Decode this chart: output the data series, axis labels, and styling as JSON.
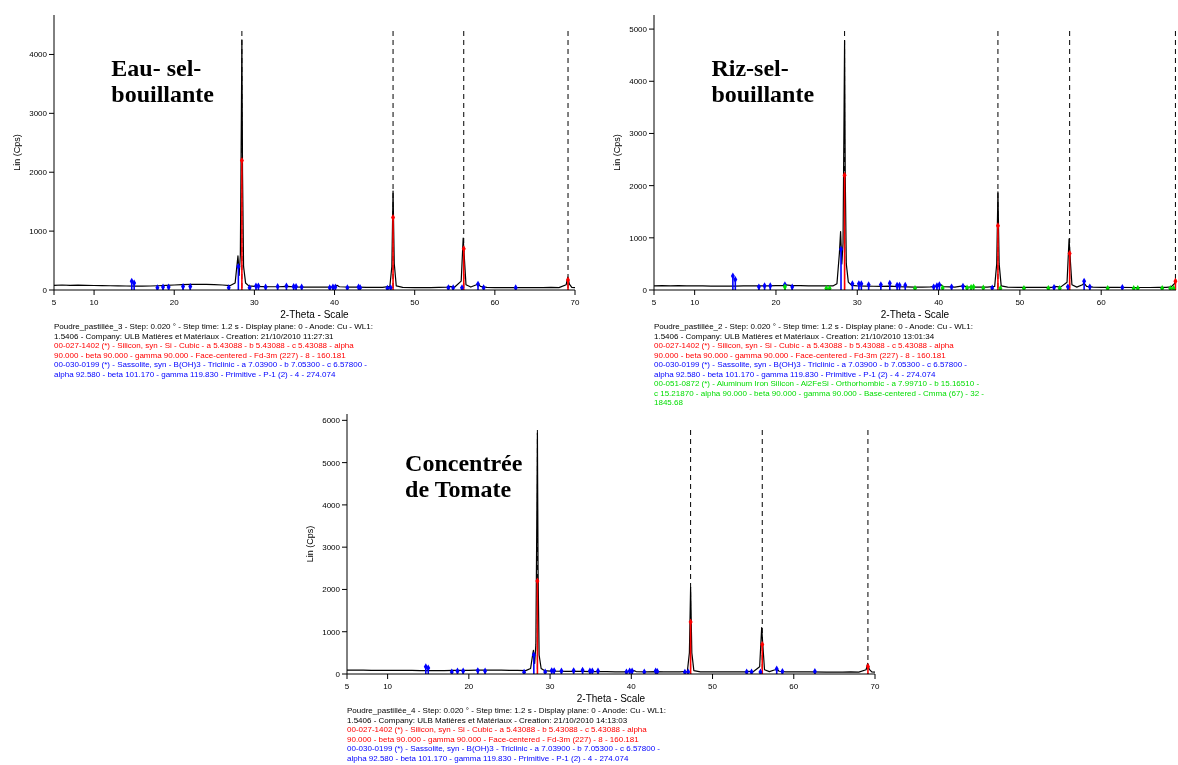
{
  "chart_data": [
    {
      "type": "line",
      "xlabel": "2-Theta - Scale",
      "ylabel": "Lin (Cps)",
      "xlim": [
        5,
        70
      ],
      "ylim": [
        0,
        4670
      ],
      "xticks": [
        5,
        10,
        20,
        30,
        40,
        50,
        60,
        70
      ],
      "yticks": [
        0,
        1000,
        2000,
        3000,
        4000
      ],
      "legend": "bottom",
      "annotations": [
        "Eau- sel- bouillante"
      ],
      "ref_lines": [
        {
          "axis": "x",
          "value": 28.44,
          "color": "#000000",
          "line_style": "dashed"
        },
        {
          "axis": "x",
          "value": 47.3,
          "color": "#000000",
          "line_style": "dashed"
        },
        {
          "axis": "x",
          "value": 56.12,
          "color": "#000000",
          "line_style": "dashed"
        },
        {
          "axis": "x",
          "value": 69.13,
          "color": "#000000",
          "line_style": "dashed"
        }
      ],
      "series": [
        {
          "name": "Poudre_pastillée_3 - Step: 0.020 ° - Step time: 1.2 s - Display plane: 0 - Anode: Cu - WL1: 1.5406 - Company: ULB Matières et Matériaux - Creation: 21/10/2010 11:27:31",
          "color": "#000000",
          "x": [
            5,
            6,
            7,
            8,
            9,
            10,
            11,
            12,
            13,
            14,
            15,
            16,
            17,
            18,
            19,
            20,
            21,
            22,
            23,
            24,
            25,
            26,
            27,
            27.6,
            27.85,
            27.95,
            28.1,
            28.25,
            28.38,
            28.44,
            28.52,
            28.65,
            28.9,
            29.3,
            30,
            31,
            32,
            33,
            34,
            35,
            36,
            37,
            38,
            39,
            40,
            40.3,
            40.6,
            42,
            43,
            44,
            45,
            46,
            46.9,
            47.15,
            47.3,
            47.45,
            47.7,
            48.5,
            50,
            52,
            54,
            54.3,
            55,
            55.8,
            56.05,
            56.15,
            56.4,
            57,
            57.7,
            57.9,
            58.2,
            59,
            60,
            62,
            64,
            66,
            67,
            68,
            68.9,
            69.1,
            69.3,
            69.6,
            70
          ],
          "values": [
            80,
            85,
            80,
            82,
            78,
            76,
            75,
            72,
            70,
            68,
            65,
            66,
            68,
            72,
            78,
            85,
            90,
            95,
            98,
            95,
            90,
            85,
            75,
            120,
            450,
            580,
            250,
            600,
            3000,
            4250,
            2000,
            400,
            120,
            70,
            62,
            58,
            55,
            55,
            60,
            52,
            50,
            48,
            48,
            50,
            55,
            80,
            55,
            48,
            50,
            45,
            45,
            45,
            60,
            400,
            1680,
            450,
            70,
            45,
            42,
            42,
            48,
            60,
            50,
            150,
            880,
            650,
            90,
            50,
            90,
            110,
            60,
            45,
            42,
            42,
            40,
            40,
            45,
            40,
            90,
            220,
            100,
            45,
            40
          ]
        },
        {
          "type": "lollipop",
          "marker": "diamond",
          "name": "00-027-1402 (*) - Silicon, syn - Si - Cubic - a 5.43088 - b 5.43088 - c 5.43088 - alpha 90.000 - beta 90.000 - gamma 90.000 - Face-centered - Fd-3m (227) - 8 - 160.181",
          "color": "#ff0000",
          "x": [
            28.44,
            47.3,
            56.12,
            69.13
          ],
          "values": [
            2200,
            1230,
            700,
            170
          ]
        },
        {
          "type": "lollipop",
          "marker": "diamond",
          "name": "00-030-0199 (*) - Sassolite, syn - B(OH)3 - Triclinic - a 7.03900 - b 7.05300 - c 6.57800 - alpha 92.580 - beta 101.170 - gamma 119.830 - Primitive - P-1 (2) - 4 - 274.074",
          "color": "#0000ff",
          "x": [
            14.7,
            15,
            17.9,
            18.6,
            19.3,
            21.1,
            22,
            26.8,
            28,
            29.4,
            30.2,
            30.5,
            31.4,
            32.9,
            34,
            34.9,
            35.2,
            35.9,
            39.4,
            39.8,
            40.1,
            41.6,
            43,
            43.2,
            46.6,
            47,
            54.2,
            54.8,
            55.9,
            57.9,
            58.6,
            62.6
          ],
          "values": [
            150,
            120,
            40,
            50,
            50,
            60,
            60,
            40,
            400,
            40,
            70,
            70,
            50,
            60,
            70,
            60,
            60,
            50,
            40,
            50,
            50,
            40,
            50,
            40,
            30,
            40,
            40,
            40,
            40,
            100,
            40,
            40
          ]
        }
      ]
    },
    {
      "type": "line",
      "xlabel": "2-Theta - Scale",
      "ylabel": "Lin (Cps)",
      "xlim": [
        5,
        69.2
      ],
      "ylim": [
        0,
        5270
      ],
      "xticks": [
        5,
        10,
        20,
        30,
        40,
        50,
        60
      ],
      "yticks": [
        0,
        1000,
        2000,
        3000,
        4000,
        5000
      ],
      "legend": "bottom",
      "annotations": [
        "Riz-sel- bouillante"
      ],
      "ref_lines": [
        {
          "axis": "x",
          "value": 28.44,
          "color": "#000000",
          "line_style": "dashed"
        },
        {
          "axis": "x",
          "value": 47.3,
          "color": "#000000",
          "line_style": "dashed"
        },
        {
          "axis": "x",
          "value": 56.12,
          "color": "#000000",
          "line_style": "dashed"
        },
        {
          "axis": "x",
          "value": 69.13,
          "color": "#000000",
          "line_style": "dashed"
        }
      ],
      "series": [
        {
          "name": "Poudre_pastillée_2 - Step: 0.020 ° - Step time: 1.2 s - Display plane: 0 - Anode: Cu - WL1: 1.5406 - Company: ULB Matières et Matériaux - Creation: 21/10/2010 13:01:34",
          "color": "#000000",
          "x": [
            5,
            6,
            7,
            8,
            9,
            10,
            11,
            12,
            13,
            14,
            15,
            16,
            17,
            18,
            19,
            20,
            21,
            21.2,
            22,
            23,
            24,
            25,
            26,
            27,
            27.5,
            27.8,
            27.95,
            28.1,
            28.25,
            28.38,
            28.44,
            28.52,
            28.65,
            28.9,
            29.3,
            30,
            31,
            32,
            33,
            34,
            35,
            36,
            37,
            38,
            39,
            40,
            40.3,
            40.6,
            42,
            43,
            43.5,
            44,
            45,
            46,
            46.9,
            47.15,
            47.3,
            47.45,
            47.7,
            48.5,
            50,
            52,
            54,
            54.3,
            55,
            55.8,
            56.05,
            56.15,
            56.4,
            57,
            57.7,
            57.9,
            58.2,
            59,
            60,
            62,
            64,
            66,
            67,
            68,
            68.6,
            69,
            69.2
          ],
          "values": [
            80,
            85,
            80,
            82,
            80,
            78,
            78,
            76,
            75,
            75,
            75,
            78,
            78,
            80,
            80,
            82,
            85,
            100,
            85,
            82,
            80,
            80,
            78,
            78,
            120,
            700,
            1120,
            500,
            900,
            3500,
            4780,
            2200,
            500,
            150,
            90,
            80,
            75,
            72,
            70,
            75,
            65,
            60,
            55,
            55,
            58,
            70,
            100,
            65,
            55,
            80,
            60,
            55,
            55,
            55,
            70,
            500,
            1880,
            500,
            80,
            55,
            50,
            50,
            50,
            70,
            55,
            150,
            980,
            700,
            100,
            55,
            100,
            130,
            70,
            55,
            50,
            50,
            48,
            48,
            50,
            50,
            60,
            120,
            200
          ]
        },
        {
          "type": "lollipop",
          "marker": "diamond",
          "name": "00-027-1402 (*) - Silicon, syn - Si - Cubic - a 5.43088 - b 5.43088 - c 5.43088 - alpha 90.000 - beta 90.000 - gamma 90.000 - Face-centered - Fd-3m (227) - 8 - 160.181",
          "color": "#ff0000",
          "x": [
            28.44,
            47.3,
            56.12,
            69.13
          ],
          "values": [
            2200,
            1230,
            700,
            170
          ]
        },
        {
          "type": "lollipop",
          "marker": "diamond",
          "name": "00-030-0199 (*) - Sassolite, syn - B(OH)3 - Triclinic - a 7.03900 - b 7.05300 - c 6.57800 - alpha 92.580 - beta 101.170 - gamma 119.830 - Primitive - P-1 (2) - 4 - 274.074",
          "color": "#0000ff",
          "x": [
            14.7,
            15,
            17.9,
            18.6,
            19.3,
            21.1,
            22,
            28,
            29.4,
            30.2,
            30.5,
            31.4,
            32.9,
            34,
            34.9,
            35.2,
            35.9,
            39.4,
            39.8,
            40.1,
            41.6,
            43,
            46.6,
            54.2,
            55.9,
            57.9,
            58.6,
            62.6
          ],
          "values": [
            270,
            200,
            60,
            80,
            80,
            100,
            60,
            780,
            120,
            120,
            120,
            100,
            100,
            130,
            90,
            90,
            90,
            60,
            80,
            100,
            60,
            70,
            40,
            50,
            60,
            170,
            60,
            50
          ]
        },
        {
          "type": "lollipop",
          "marker": "diamond",
          "name": "00-051-0872 (*) - Aluminum Iron Silicon - Al2FeSi - Orthorhombic - a 7.99710 - b 15.16510 - c 15.21870 - alpha 90.000 - beta 90.000 - gamma 90.000 - Base-centered - Cmma (67) - 32 - 1845.68",
          "color": "#00dd00",
          "x": [
            21.1,
            26.2,
            26.6,
            37.1,
            40.5,
            43.5,
            44,
            44.3,
            45.5,
            47.6,
            50.5,
            53.5,
            54.9,
            60.8,
            64,
            64.5,
            67.5,
            68.5,
            68.9
          ],
          "values": [
            60,
            30,
            30,
            30,
            40,
            40,
            50,
            60,
            40,
            30,
            30,
            30,
            30,
            30,
            30,
            30,
            30,
            30,
            30
          ]
        }
      ]
    },
    {
      "type": "line",
      "xlabel": "2-Theta - Scale",
      "ylabel": "Lin (Cps)",
      "xlim": [
        5,
        70
      ],
      "ylim": [
        0,
        6150
      ],
      "xticks": [
        5,
        10,
        20,
        30,
        40,
        50,
        60,
        70
      ],
      "yticks": [
        0,
        1000,
        2000,
        3000,
        4000,
        5000,
        6000
      ],
      "legend": "bottom",
      "annotations": [
        "Concentrée de Tomate"
      ],
      "ref_lines": [
        {
          "axis": "x",
          "value": 28.44,
          "color": "#000000",
          "line_style": "dashed"
        },
        {
          "axis": "x",
          "value": 47.3,
          "color": "#000000",
          "line_style": "dashed"
        },
        {
          "axis": "x",
          "value": 56.12,
          "color": "#000000",
          "line_style": "dashed"
        },
        {
          "axis": "x",
          "value": 69.13,
          "color": "#000000",
          "line_style": "dashed"
        }
      ],
      "series": [
        {
          "name": "Poudre_pastillée_4 - Step: 0.020 ° - Step time: 1.2 s - Display plane: 0 - Anode: Cu - WL1: 1.5406 - Company: ULB Matières et Matériaux - Creation: 21/10/2010 14:13:03",
          "color": "#000000",
          "x": [
            5,
            6,
            7,
            8,
            9,
            10,
            11,
            12,
            13,
            14,
            15,
            16,
            17,
            18,
            19,
            20,
            21,
            22,
            23,
            24,
            25,
            26,
            27,
            27.6,
            27.85,
            27.95,
            28.1,
            28.25,
            28.38,
            28.44,
            28.52,
            28.65,
            28.9,
            29.3,
            30,
            31,
            32,
            33,
            34,
            35,
            36,
            37,
            38,
            39,
            40,
            40.3,
            40.6,
            42,
            43,
            44,
            45,
            46,
            46.9,
            47.15,
            47.3,
            47.45,
            47.7,
            48.5,
            50,
            52,
            54,
            54.3,
            55,
            55.8,
            56.05,
            56.15,
            56.4,
            57,
            57.7,
            57.9,
            58.2,
            59,
            60,
            62,
            64,
            66,
            67,
            68,
            68.9,
            69.1,
            69.3,
            69.6,
            70
          ],
          "values": [
            90,
            92,
            90,
            88,
            88,
            86,
            85,
            85,
            84,
            82,
            80,
            80,
            82,
            84,
            86,
            88,
            90,
            92,
            92,
            90,
            88,
            85,
            80,
            130,
            450,
            560,
            250,
            700,
            4000,
            5700,
            2500,
            450,
            130,
            80,
            70,
            65,
            62,
            60,
            62,
            58,
            55,
            55,
            52,
            52,
            60,
            80,
            58,
            52,
            55,
            50,
            50,
            50,
            65,
            500,
            2050,
            500,
            80,
            50,
            48,
            48,
            50,
            65,
            55,
            170,
            1100,
            800,
            100,
            55,
            100,
            120,
            65,
            50,
            48,
            48,
            45,
            45,
            48,
            45,
            100,
            250,
            110,
            50,
            45
          ]
        },
        {
          "type": "lollipop",
          "marker": "diamond",
          "name": "00-027-1402 (*) - Silicon, syn - Si - Cubic - a 5.43088 - b 5.43088 - c 5.43088 - alpha 90.000 - beta 90.000 - gamma 90.000 - Face-centered - Fd-3m (227) - 8 - 160.181",
          "color": "#ff0000",
          "x": [
            28.44,
            47.3,
            56.12,
            69.13
          ],
          "values": [
            2200,
            1230,
            700,
            180
          ]
        },
        {
          "type": "lollipop",
          "marker": "diamond",
          "name": "00-030-0199 (*) - Sassolite, syn - B(OH)3 - Triclinic - a 7.03900 - b 7.05300 - c 6.57800 - alpha 92.580 - beta 101.170 - gamma 119.830 - Primitive - P-1 (2) - 4 - 274.074",
          "color": "#0000ff",
          "x": [
            14.7,
            15,
            17.9,
            18.6,
            19.3,
            21.1,
            22,
            26.8,
            28,
            29.4,
            30.2,
            30.5,
            31.4,
            32.9,
            34,
            34.9,
            35.2,
            35.9,
            39.4,
            39.8,
            40.1,
            41.6,
            43,
            43.2,
            46.6,
            47,
            54.2,
            54.8,
            55.9,
            57.9,
            58.6,
            62.6
          ],
          "values": [
            170,
            140,
            50,
            70,
            70,
            80,
            70,
            40,
            450,
            50,
            80,
            80,
            70,
            80,
            90,
            70,
            70,
            70,
            50,
            70,
            70,
            50,
            70,
            60,
            40,
            50,
            50,
            50,
            50,
            120,
            60,
            60
          ]
        }
      ]
    }
  ]
}
